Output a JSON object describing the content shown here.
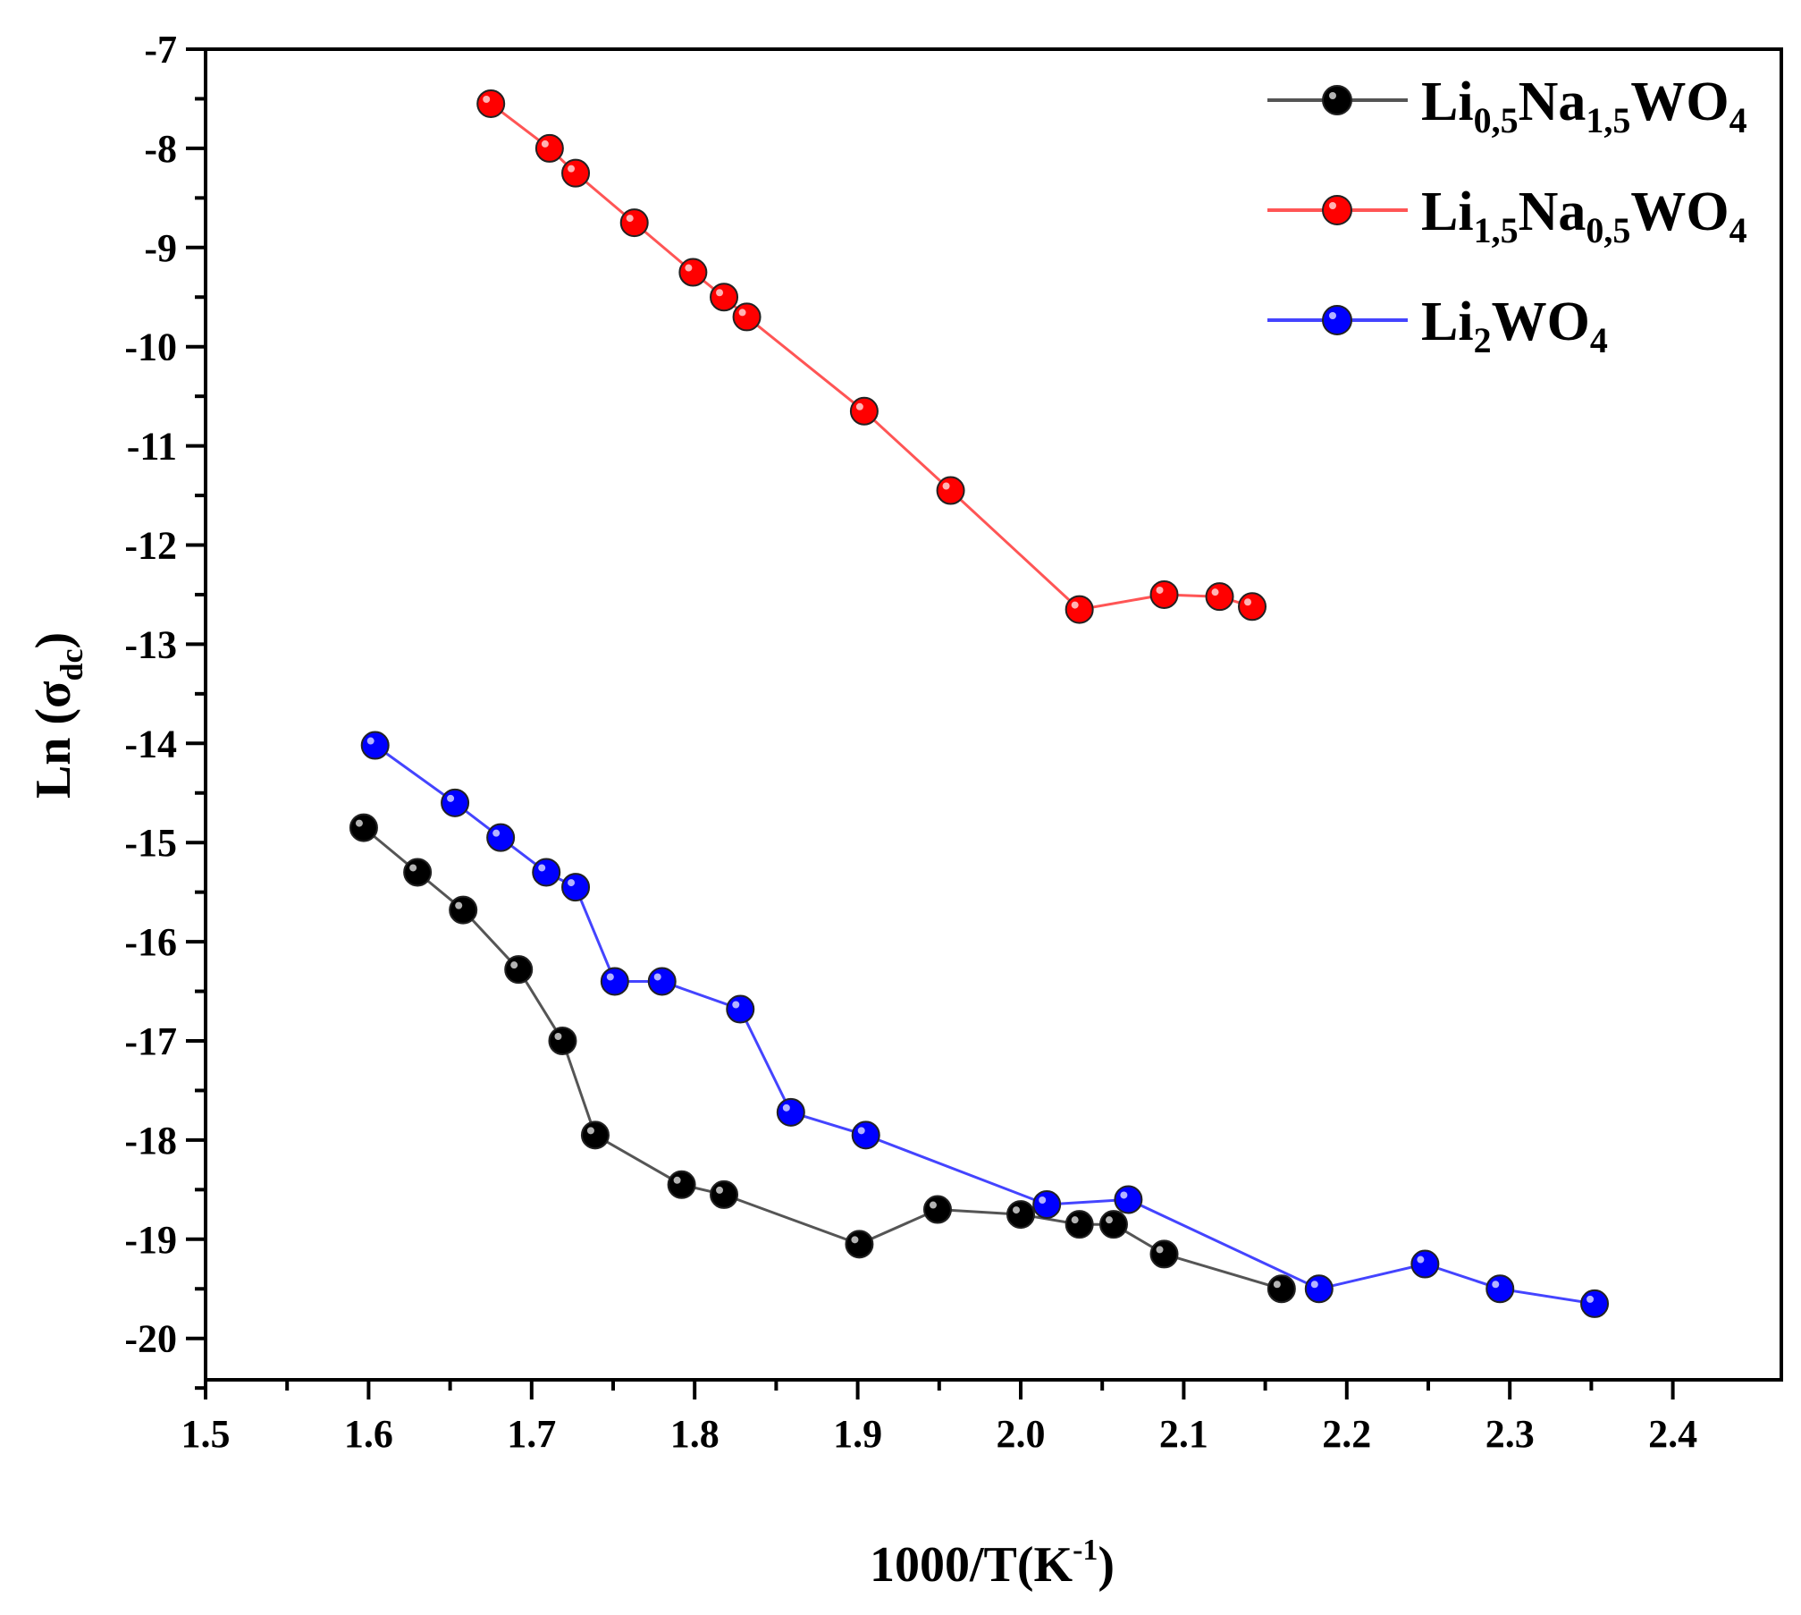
{
  "chart_data": {
    "type": "line",
    "title": "",
    "xlabel": "1000/T(K",
    "xlabel_sup": "-1",
    "xlabel_close": ")",
    "ylabel": "Ln (σ",
    "ylabel_sub": "dc",
    "ylabel_close": ")",
    "xlim": [
      1.5,
      2.45
    ],
    "ylim": [
      -20.5,
      -7
    ],
    "xticks": [
      "1.5",
      "1.6",
      "1.7",
      "1.8",
      "1.9",
      "2.0",
      "2.1",
      "2.2",
      "2.3",
      "2.4"
    ],
    "yticks": [
      "-7",
      "-8",
      "-9",
      "-10",
      "-11",
      "-12",
      "-13",
      "-14",
      "-15",
      "-16",
      "-17",
      "-18",
      "-19",
      "-20"
    ],
    "legend_position": "top-right",
    "series": [
      {
        "name": "Li0,5Na1,5WO4",
        "legend_parts": [
          {
            "t": "Li",
            "s": false
          },
          {
            "t": "0,5",
            "s": true
          },
          {
            "t": "Na",
            "s": false
          },
          {
            "t": "1,5",
            "s": true
          },
          {
            "t": "WO",
            "s": false
          },
          {
            "t": "4",
            "s": true
          }
        ],
        "color": "#000000",
        "line_color": "#555555",
        "x": [
          1.597,
          1.63,
          1.658,
          1.692,
          1.719,
          1.739,
          1.792,
          1.818,
          1.901,
          1.949,
          2.0,
          2.036,
          2.057,
          2.088,
          2.16
        ],
        "y": [
          -14.85,
          -15.3,
          -15.68,
          -16.28,
          -17.0,
          -17.95,
          -18.45,
          -18.55,
          -19.05,
          -18.7,
          -18.75,
          -18.85,
          -18.85,
          -19.15,
          -19.5
        ]
      },
      {
        "name": "Li1,5Na0,5WO4",
        "legend_parts": [
          {
            "t": "Li",
            "s": false
          },
          {
            "t": "1,5",
            "s": true
          },
          {
            "t": "Na",
            "s": false
          },
          {
            "t": "0,5",
            "s": true
          },
          {
            "t": "WO",
            "s": false
          },
          {
            "t": "4",
            "s": true
          }
        ],
        "color": "#ff0000",
        "line_color": "#ff5555",
        "x": [
          1.675,
          1.711,
          1.727,
          1.763,
          1.799,
          1.818,
          1.832,
          1.904,
          1.957,
          2.036,
          2.088,
          2.122,
          2.142
        ],
        "y": [
          -7.55,
          -8.0,
          -8.25,
          -8.75,
          -9.25,
          -9.5,
          -9.7,
          -10.65,
          -11.45,
          -12.65,
          -12.5,
          -12.52,
          -12.62
        ]
      },
      {
        "name": "Li2WO4",
        "legend_parts": [
          {
            "t": "Li",
            "s": false
          },
          {
            "t": "2",
            "s": true
          },
          {
            "t": "WO",
            "s": false
          },
          {
            "t": "4",
            "s": true
          }
        ],
        "color": "#0000ff",
        "line_color": "#4444ff",
        "x": [
          1.604,
          1.653,
          1.681,
          1.709,
          1.727,
          1.751,
          1.78,
          1.828,
          1.859,
          1.905,
          2.016,
          2.066,
          2.183,
          2.248,
          2.294,
          2.352
        ],
        "y": [
          -14.02,
          -14.6,
          -14.95,
          -15.3,
          -15.45,
          -16.4,
          -16.4,
          -16.68,
          -17.72,
          -17.95,
          -18.65,
          -18.6,
          -19.5,
          -19.25,
          -19.5,
          -19.65
        ]
      }
    ]
  }
}
